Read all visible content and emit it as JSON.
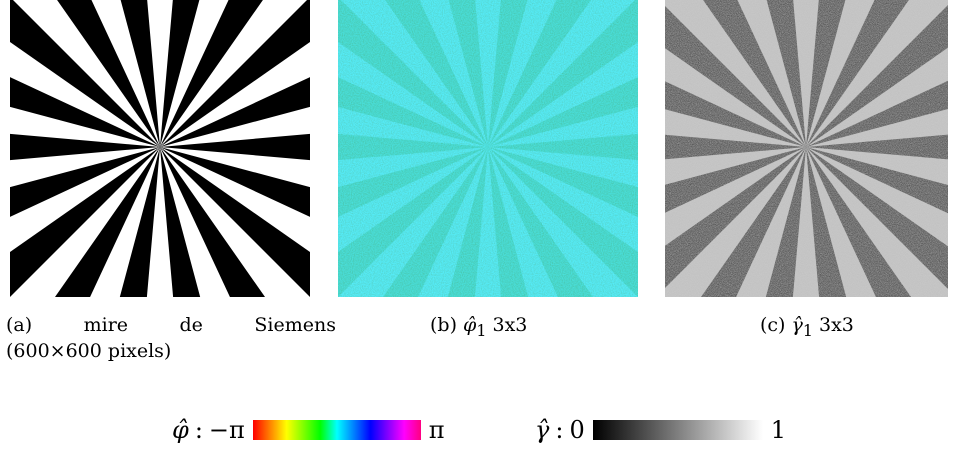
{
  "figure": {
    "panels": [
      {
        "id": "a",
        "label": "(a)",
        "caption_words": [
          "mire",
          "de",
          "Siemens"
        ],
        "caption_line2": "(600×600 pixels)"
      },
      {
        "id": "b",
        "label": "(b)",
        "symbol": "φ̂",
        "subscript": "1",
        "suffix": "3x3"
      },
      {
        "id": "c",
        "label": "(c)",
        "symbol": "γ̂",
        "subscript": "1",
        "suffix": "3x3"
      }
    ],
    "legend": {
      "phi": {
        "symbol": "φ̂",
        "sep": ":",
        "min": "−π",
        "max": "π"
      },
      "gamma": {
        "symbol": "γ̂",
        "sep": ":",
        "min": "0",
        "max": "1"
      }
    },
    "colors": {
      "phase_base": "#2fd6c8",
      "phase_wedge": "#4fe8ea",
      "coherence_base": "#5a5a5a",
      "coherence_wedge": "#c8c8c8"
    }
  }
}
